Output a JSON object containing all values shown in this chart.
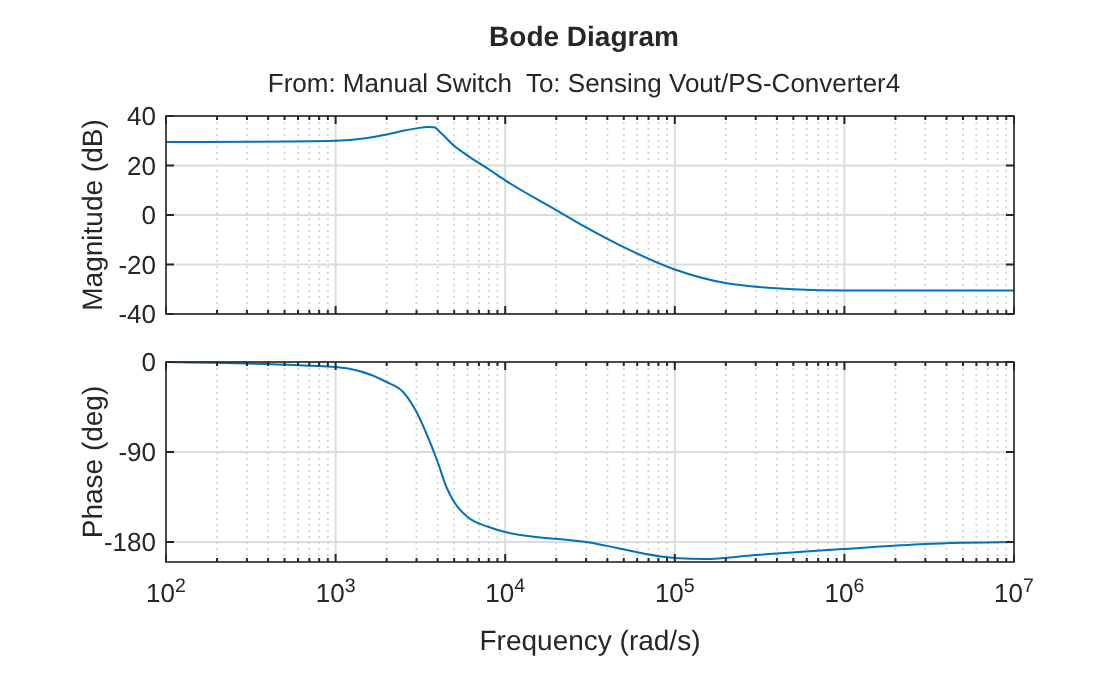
{
  "chart_data": [
    {
      "type": "line",
      "title": "Bode Diagram",
      "subtitle": "From: Manual Switch  To: Sensing Vout/PS-Converter4",
      "ylabel": "Magnitude (dB)",
      "log": "x",
      "grid": true,
      "tick_labels": "y",
      "x": [
        100,
        300,
        1000,
        1500,
        2000,
        2500,
        3000,
        3500,
        3800,
        4200,
        5000,
        6000,
        8000,
        10000,
        20000,
        30000,
        50000,
        100000,
        200000,
        300000,
        500000,
        1000000,
        10000000
      ],
      "series": [
        {
          "color": "#0072bd",
          "values": [
            29.5,
            29.6,
            30,
            31,
            32.5,
            34,
            35,
            35.6,
            35.5,
            33,
            28,
            24,
            18.5,
            14,
            2,
            -5,
            -13,
            -22,
            -27.5,
            -29,
            -30,
            -30.5,
            -30.5
          ]
        }
      ],
      "xlim": [
        100,
        10000000
      ],
      "ylim": [
        -40,
        40
      ],
      "yticks": [
        -40,
        -20,
        0,
        20,
        40
      ],
      "xticks": [
        {
          "value": 100,
          "label": null
        },
        {
          "value": 200,
          "label": null
        },
        {
          "value": 300,
          "label": null
        },
        {
          "value": 400,
          "label": null
        },
        {
          "value": 500,
          "label": null
        },
        {
          "value": 600,
          "label": null
        },
        {
          "value": 700,
          "label": null
        },
        {
          "value": 800,
          "label": null
        },
        {
          "value": 900,
          "label": null
        },
        {
          "value": 1000,
          "label": null
        },
        {
          "value": 2000,
          "label": null
        },
        {
          "value": 3000,
          "label": null
        },
        {
          "value": 4000,
          "label": null
        },
        {
          "value": 5000,
          "label": null
        },
        {
          "value": 6000,
          "label": null
        },
        {
          "value": 7000,
          "label": null
        },
        {
          "value": 8000,
          "label": null
        },
        {
          "value": 9000,
          "label": null
        },
        {
          "value": 10000,
          "label": null
        },
        {
          "value": 20000,
          "label": null
        },
        {
          "value": 30000,
          "label": null
        },
        {
          "value": 40000,
          "label": null
        },
        {
          "value": 50000,
          "label": null
        },
        {
          "value": 60000,
          "label": null
        },
        {
          "value": 70000,
          "label": null
        },
        {
          "value": 80000,
          "label": null
        },
        {
          "value": 90000,
          "label": null
        },
        {
          "value": 100000,
          "label": null
        },
        {
          "value": 200000,
          "label": null
        },
        {
          "value": 300000,
          "label": null
        },
        {
          "value": 400000,
          "label": null
        },
        {
          "value": 500000,
          "label": null
        },
        {
          "value": 600000,
          "label": null
        },
        {
          "value": 700000,
          "label": null
        },
        {
          "value": 800000,
          "label": null
        },
        {
          "value": 900000,
          "label": null
        },
        {
          "value": 1000000,
          "label": null
        },
        {
          "value": 2000000,
          "label": null
        },
        {
          "value": 3000000,
          "label": null
        },
        {
          "value": 4000000,
          "label": null
        },
        {
          "value": 5000000,
          "label": null
        },
        {
          "value": 6000000,
          "label": null
        },
        {
          "value": 7000000,
          "label": null
        },
        {
          "value": 8000000,
          "label": null
        },
        {
          "value": 9000000,
          "label": null
        },
        {
          "value": 10000000,
          "label": null
        }
      ]
    },
    {
      "type": "line",
      "xlabel": "Frequency (rad/s)",
      "ylabel": "Phase (deg)",
      "log": "x",
      "grid": true,
      "x": [
        100,
        1000,
        2000,
        2500,
        3000,
        3500,
        4000,
        4500,
        5000,
        6000,
        8000,
        10000,
        30000,
        100000,
        150000,
        300000,
        1000000,
        3000000,
        10000000
      ],
      "series": [
        {
          "color": "#0072bd",
          "values": [
            0,
            -5,
            -20,
            -30,
            -50,
            -75,
            -100,
            -125,
            -140,
            -155,
            -165,
            -170,
            -180,
            -196,
            -197,
            -193,
            -187,
            -182,
            -180
          ]
        }
      ],
      "xlim": [
        100,
        10000000
      ],
      "ylim": [
        -200,
        0
      ],
      "yticks": [
        -180,
        -90,
        0
      ],
      "xticks": [
        {
          "value": 100,
          "label": "10$^{2}$"
        },
        {
          "value": 200,
          "label": null
        },
        {
          "value": 300,
          "label": null
        },
        {
          "value": 400,
          "label": null
        },
        {
          "value": 500,
          "label": null
        },
        {
          "value": 600,
          "label": null
        },
        {
          "value": 700,
          "label": null
        },
        {
          "value": 800,
          "label": null
        },
        {
          "value": 900,
          "label": null
        },
        {
          "value": 1000,
          "label": "10$^{3}$"
        },
        {
          "value": 2000,
          "label": null
        },
        {
          "value": 3000,
          "label": null
        },
        {
          "value": 4000,
          "label": null
        },
        {
          "value": 5000,
          "label": null
        },
        {
          "value": 6000,
          "label": null
        },
        {
          "value": 7000,
          "label": null
        },
        {
          "value": 8000,
          "label": null
        },
        {
          "value": 9000,
          "label": null
        },
        {
          "value": 10000,
          "label": "10$^{4}$"
        },
        {
          "value": 20000,
          "label": null
        },
        {
          "value": 30000,
          "label": null
        },
        {
          "value": 40000,
          "label": null
        },
        {
          "value": 50000,
          "label": null
        },
        {
          "value": 60000,
          "label": null
        },
        {
          "value": 70000,
          "label": null
        },
        {
          "value": 80000,
          "label": null
        },
        {
          "value": 90000,
          "label": null
        },
        {
          "value": 100000,
          "label": "10$^{5}$"
        },
        {
          "value": 200000,
          "label": null
        },
        {
          "value": 300000,
          "label": null
        },
        {
          "value": 400000,
          "label": null
        },
        {
          "value": 500000,
          "label": null
        },
        {
          "value": 600000,
          "label": null
        },
        {
          "value": 700000,
          "label": null
        },
        {
          "value": 800000,
          "label": null
        },
        {
          "value": 900000,
          "label": null
        },
        {
          "value": 1000000,
          "label": "10$^{6}$"
        },
        {
          "value": 2000000,
          "label": null
        },
        {
          "value": 3000000,
          "label": null
        },
        {
          "value": 4000000,
          "label": null
        },
        {
          "value": 5000000,
          "label": null
        },
        {
          "value": 6000000,
          "label": null
        },
        {
          "value": 7000000,
          "label": null
        },
        {
          "value": 8000000,
          "label": null
        },
        {
          "value": 9000000,
          "label": null
        },
        {
          "value": 10000000,
          "label": "10$^{7}$"
        }
      ]
    }
  ]
}
